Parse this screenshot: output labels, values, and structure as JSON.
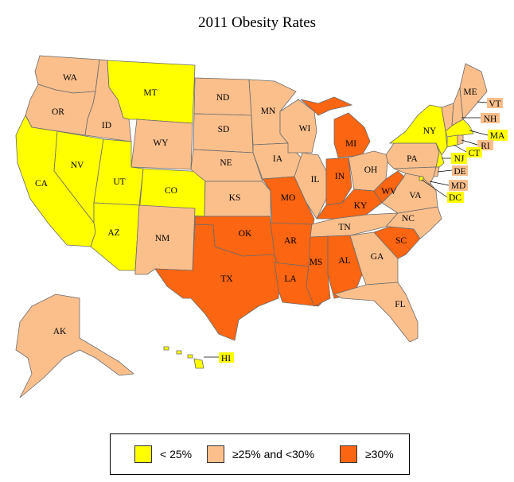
{
  "title": "2011 Obesity Rates",
  "colors": {
    "low": "#ffff00",
    "mid": "#fbbf8c",
    "high": "#fc6512",
    "water": "#ffffff"
  },
  "legend": [
    {
      "label": "< 25%",
      "color": "#ffff00"
    },
    {
      "label": "≥25% and <30%",
      "color": "#fbbf8c"
    },
    {
      "label": "≥30%",
      "color": "#fc6512"
    }
  ],
  "states": {
    "WA": "mid",
    "OR": "mid",
    "ID": "mid",
    "MT": "low",
    "WY": "mid",
    "CA": "low",
    "NV": "low",
    "UT": "low",
    "CO": "low",
    "AZ": "low",
    "NM": "mid",
    "ND": "mid",
    "SD": "mid",
    "NE": "mid",
    "KS": "mid",
    "OK": "high",
    "TX": "high",
    "MN": "mid",
    "IA": "mid",
    "MO": "high",
    "AR": "high",
    "LA": "high",
    "WI": "mid",
    "IL": "mid",
    "MI": "high",
    "IN": "high",
    "OH": "mid",
    "KY": "high",
    "TN": "mid",
    "MS": "high",
    "AL": "high",
    "GA": "mid",
    "FL": "mid",
    "SC": "high",
    "NC": "mid",
    "VA": "mid",
    "WV": "high",
    "PA": "mid",
    "NY": "low",
    "VT": "mid",
    "NH": "mid",
    "ME": "mid",
    "MA": "low",
    "RI": "mid",
    "CT": "low",
    "NJ": "low",
    "DE": "mid",
    "MD": "mid",
    "DC": "low",
    "AK": "mid",
    "HI": "low"
  }
}
